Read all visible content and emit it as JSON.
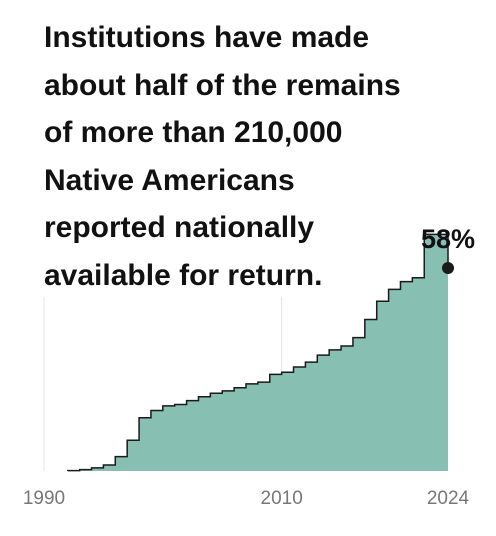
{
  "headline": {
    "lines": [
      "Institutions have made",
      "about half of the remains",
      "of more than 210,000",
      "Native Americans",
      "reported nationally",
      "available for return."
    ]
  },
  "chart_data": {
    "type": "area",
    "title": "Institutions have made about half of the remains of more than 210,000 Native Americans reported nationally available for return.",
    "xlabel": "",
    "ylabel": "",
    "xlim": [
      1990,
      2024
    ],
    "ylim": [
      0,
      100
    ],
    "x_ticks": [
      "1990",
      "2010",
      "2024"
    ],
    "x_tick_values": [
      1990,
      2010,
      2024
    ],
    "grid": "vertical lines at 1990 and 2010",
    "step": true,
    "x": [
      1992,
      1993,
      1994,
      1995,
      1996,
      1997,
      1998,
      1999,
      2000,
      2001,
      2002,
      2003,
      2004,
      2005,
      2006,
      2007,
      2008,
      2009,
      2010,
      2011,
      2012,
      2013,
      2014,
      2015,
      2016,
      2017,
      2018,
      2019,
      2020,
      2021,
      2022,
      2023,
      2024
    ],
    "values": [
      0.1,
      0.4,
      0.9,
      1.7,
      4.1,
      8.8,
      15.2,
      17.3,
      18.6,
      19.0,
      20.1,
      21.2,
      22.2,
      22.9,
      23.8,
      24.9,
      25.4,
      27.6,
      28.2,
      29.7,
      31.1,
      33.1,
      34.6,
      35.7,
      38.1,
      43.3,
      48.5,
      51.9,
      54.1,
      55.2,
      67.6,
      67.6,
      58.0
    ],
    "series": [
      {
        "values": [
          0.1,
          0.4,
          0.9,
          1.7,
          4.1,
          8.8,
          15.2,
          17.3,
          18.6,
          19.0,
          20.1,
          21.2,
          22.2,
          22.9,
          23.8,
          24.9,
          25.4,
          27.6,
          28.2,
          29.7,
          31.1,
          33.1,
          34.6,
          35.7,
          38.1,
          43.3,
          48.5,
          51.9,
          54.1,
          55.2,
          67.6,
          67.6,
          58.0
        ]
      }
    ],
    "end_label": "58%",
    "colors": {
      "fill": "#88bfb3",
      "line": "#1a1a1a",
      "marker": "#1a1a1a",
      "grid": "#e4e4e4",
      "tick_text": "#777777"
    }
  }
}
